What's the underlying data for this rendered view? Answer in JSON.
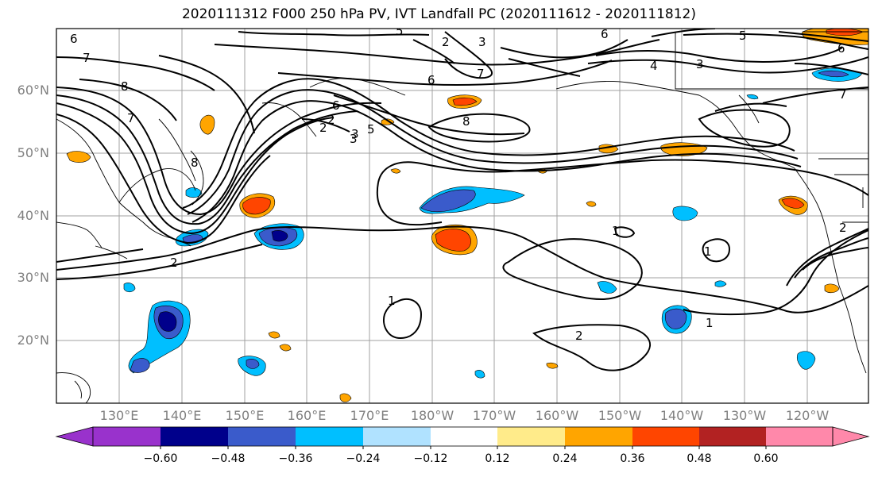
{
  "title": "2020111312 F000 250 hPa PV, IVT Landfall PC (2020111612 - 2020111812)",
  "lat_labels": [
    "60°N",
    "50°N",
    "40°N",
    "30°N",
    "20°N"
  ],
  "lon_labels": [
    "130°E",
    "140°E",
    "150°E",
    "160°E",
    "170°E",
    "180°W",
    "170°W",
    "160°W",
    "150°W",
    "140°W",
    "130°W",
    "120°W"
  ],
  "colorbar": {
    "colors": [
      "#9932CC",
      "#00008B",
      "#3A5BCB",
      "#00BFFF",
      "#B0E2FF",
      "#FFFFFF",
      "#FFEB8A",
      "#FFA500",
      "#FF4500",
      "#B22222",
      "#FF88AA"
    ],
    "labels": [
      "−0.60",
      "−0.48",
      "−0.36",
      "−0.24",
      "−0.12",
      "0.12",
      "0.24",
      "0.36",
      "0.48",
      "0.60"
    ]
  },
  "contour_labels": [
    "6",
    "7",
    "8",
    "5",
    "2",
    "3",
    "7",
    "6",
    "2",
    "3",
    "6",
    "5",
    "3",
    "4",
    "8",
    "6",
    "7",
    "6",
    "8",
    "7",
    "2",
    "5",
    "3",
    "2",
    "1",
    "1",
    "2",
    "1",
    "1",
    "2"
  ]
}
